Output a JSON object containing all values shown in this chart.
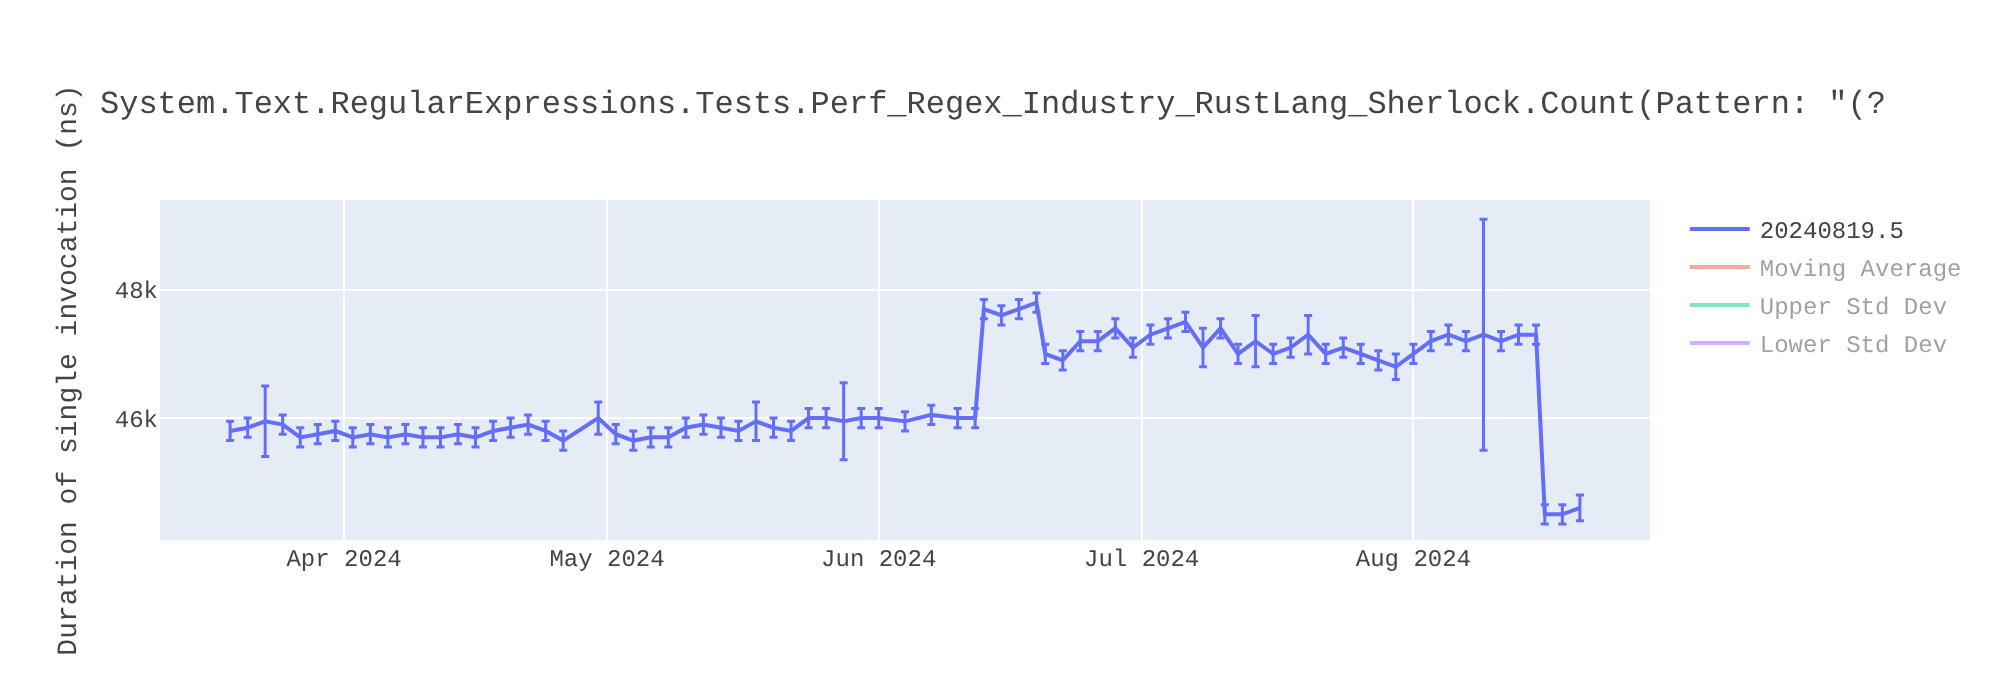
{
  "chart_data": {
    "type": "line",
    "title": "System.Text.RegularExpressions.Tests.Perf_Regex_Industry_RustLang_Sherlock.Count(Pattern: \"(?",
    "ylabel": "Duration of single invocation (ns)",
    "x": [
      "2024-03-19",
      "2024-03-21",
      "2024-03-23",
      "2024-03-25",
      "2024-03-27",
      "2024-03-29",
      "2024-03-31",
      "2024-04-02",
      "2024-04-04",
      "2024-04-06",
      "2024-04-08",
      "2024-04-10",
      "2024-04-12",
      "2024-04-14",
      "2024-04-16",
      "2024-04-18",
      "2024-04-20",
      "2024-04-22",
      "2024-04-24",
      "2024-04-26",
      "2024-04-30",
      "2024-05-02",
      "2024-05-04",
      "2024-05-06",
      "2024-05-08",
      "2024-05-10",
      "2024-05-12",
      "2024-05-14",
      "2024-05-16",
      "2024-05-18",
      "2024-05-20",
      "2024-05-22",
      "2024-05-24",
      "2024-05-26",
      "2024-05-28",
      "2024-05-30",
      "2024-06-01",
      "2024-06-04",
      "2024-06-07",
      "2024-06-10",
      "2024-06-12",
      "2024-06-13",
      "2024-06-15",
      "2024-06-17",
      "2024-06-19",
      "2024-06-20",
      "2024-06-22",
      "2024-06-24",
      "2024-06-26",
      "2024-06-28",
      "2024-06-30",
      "2024-07-02",
      "2024-07-04",
      "2024-07-06",
      "2024-07-08",
      "2024-07-10",
      "2024-07-12",
      "2024-07-14",
      "2024-07-16",
      "2024-07-18",
      "2024-07-20",
      "2024-07-22",
      "2024-07-24",
      "2024-07-26",
      "2024-07-28",
      "2024-07-30",
      "2024-08-01",
      "2024-08-03",
      "2024-08-05",
      "2024-08-07",
      "2024-08-09",
      "2024-08-11",
      "2024-08-13",
      "2024-08-15",
      "2024-08-16",
      "2024-08-18",
      "2024-08-20"
    ],
    "series": [
      {
        "name": "20240819.5",
        "color": "#636efa",
        "values": [
          45800,
          45850,
          45950,
          45900,
          45700,
          45750,
          45800,
          45700,
          45750,
          45700,
          45750,
          45700,
          45700,
          45750,
          45700,
          45800,
          45850,
          45900,
          45800,
          45650,
          46000,
          45750,
          45650,
          45700,
          45700,
          45850,
          45900,
          45850,
          45800,
          45950,
          45850,
          45800,
          46000,
          46000,
          45950,
          46000,
          46000,
          45950,
          46050,
          46000,
          46000,
          47700,
          47600,
          47700,
          47800,
          47000,
          46900,
          47200,
          47200,
          47400,
          47100,
          47300,
          47400,
          47500,
          47100,
          47400,
          47000,
          47200,
          47000,
          47100,
          47300,
          47000,
          47100,
          47000,
          46900,
          46800,
          47000,
          47200,
          47300,
          47200,
          47300,
          47200,
          47300,
          47300,
          44500,
          44500,
          44600
        ],
        "errors": [
          150,
          150,
          550,
          150,
          150,
          150,
          150,
          150,
          150,
          150,
          150,
          150,
          150,
          150,
          150,
          150,
          150,
          150,
          150,
          150,
          250,
          150,
          150,
          150,
          150,
          150,
          150,
          150,
          150,
          300,
          150,
          150,
          150,
          150,
          600,
          150,
          150,
          150,
          150,
          150,
          150,
          150,
          150,
          150,
          150,
          150,
          150,
          150,
          150,
          150,
          150,
          150,
          150,
          150,
          300,
          150,
          150,
          400,
          150,
          150,
          300,
          150,
          150,
          150,
          150,
          200,
          150,
          150,
          150,
          150,
          1800,
          150,
          150,
          150,
          150,
          150,
          200
        ]
      },
      {
        "name": "Moving Average",
        "color": "#EF553B",
        "values": [
          null,
          null,
          null,
          null,
          null,
          null,
          null,
          null,
          null,
          null,
          null,
          null,
          null,
          null,
          null,
          null,
          null,
          null,
          null,
          null,
          null,
          null,
          null,
          null,
          null,
          null,
          null,
          null,
          null,
          null,
          null,
          null,
          null,
          null,
          null,
          null,
          null,
          null,
          null,
          null,
          null,
          null,
          null,
          null,
          null,
          null,
          null,
          null,
          null,
          null,
          null,
          null,
          null,
          null,
          null,
          null,
          null,
          null,
          null,
          null,
          null,
          null,
          null,
          null,
          null,
          null,
          null,
          null,
          null,
          null,
          null,
          null,
          null,
          null,
          null,
          null,
          null
        ]
      },
      {
        "name": "Upper Std Dev",
        "color": "#00CC96",
        "values": [
          null,
          null,
          null,
          null,
          null,
          null,
          null,
          null,
          null,
          null,
          null,
          null,
          null,
          null,
          null,
          null,
          null,
          null,
          null,
          null,
          null,
          null,
          null,
          null,
          null,
          null,
          null,
          null,
          null,
          null,
          null,
          null,
          null,
          null,
          null,
          null,
          null,
          null,
          null,
          null,
          null,
          null,
          null,
          null,
          null,
          null,
          null,
          null,
          null,
          null,
          null,
          null,
          null,
          null,
          null,
          null,
          null,
          null,
          null,
          null,
          null,
          null,
          null,
          null,
          null,
          null,
          null,
          null,
          null,
          null,
          null,
          null,
          null,
          null,
          null,
          null,
          null
        ]
      },
      {
        "name": "Lower Std Dev",
        "color": "#AB63FA",
        "values": [
          null,
          null,
          null,
          null,
          null,
          null,
          null,
          null,
          null,
          null,
          null,
          null,
          null,
          null,
          null,
          null,
          null,
          null,
          null,
          null,
          null,
          null,
          null,
          null,
          null,
          null,
          null,
          null,
          null,
          null,
          null,
          null,
          null,
          null,
          null,
          null,
          null,
          null,
          null,
          null,
          null,
          null,
          null,
          null,
          null,
          null,
          null,
          null,
          null,
          null,
          null,
          null,
          null,
          null,
          null,
          null,
          null,
          null,
          null,
          null,
          null,
          null,
          null,
          null,
          null,
          null,
          null,
          null,
          null,
          null,
          null,
          null,
          null,
          null,
          null,
          null,
          null
        ]
      }
    ],
    "xlim": [
      "2024-03-11",
      "2024-08-28"
    ],
    "xticks": [
      {
        "value": "2024-04-01",
        "label": "Apr 2024"
      },
      {
        "value": "2024-05-01",
        "label": "May 2024"
      },
      {
        "value": "2024-06-01",
        "label": "Jun 2024"
      },
      {
        "value": "2024-07-01",
        "label": "Jul 2024"
      },
      {
        "value": "2024-08-01",
        "label": "Aug 2024"
      }
    ],
    "ylim": [
      44100,
      49400
    ],
    "yticks": [
      {
        "value": 46000,
        "label": "46k"
      },
      {
        "value": 48000,
        "label": "48k"
      }
    ],
    "grid": true,
    "legend": "top right",
    "line_style": "solid"
  }
}
